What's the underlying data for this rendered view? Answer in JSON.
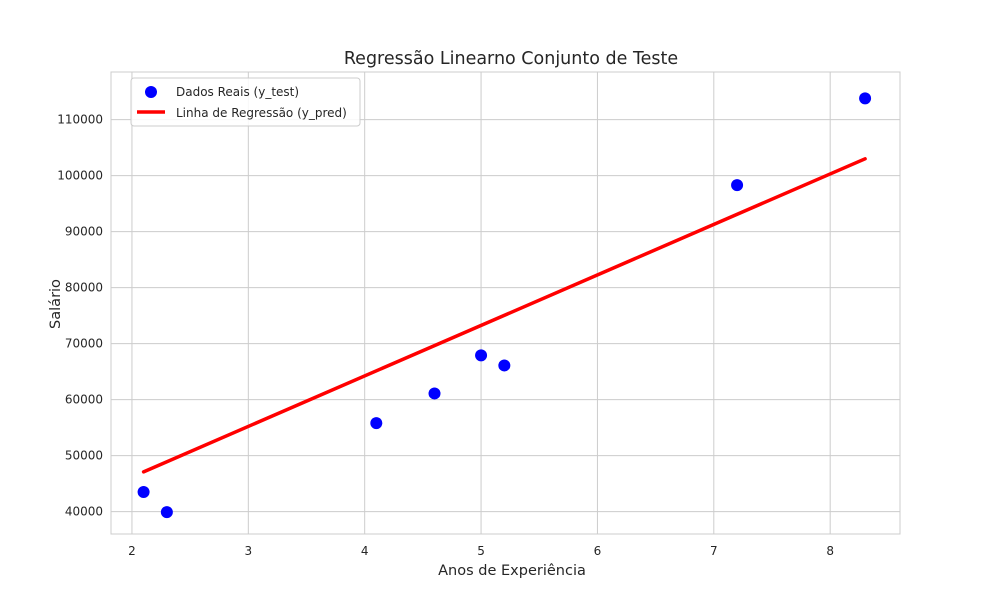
{
  "chart_data": {
    "type": "scatter",
    "title": "Regressão Linearno Conjunto de Teste",
    "xlabel": "Anos de Experiência",
    "ylabel": "Salário",
    "xlim": [
      1.82,
      8.6
    ],
    "ylim": [
      36000,
      118500
    ],
    "xticks": [
      2,
      3,
      4,
      5,
      6,
      7,
      8
    ],
    "yticks": [
      40000,
      50000,
      60000,
      70000,
      80000,
      90000,
      100000,
      110000
    ],
    "grid": true,
    "legend_position": "top-left",
    "series": [
      {
        "name": "Dados Reais (y_test)",
        "kind": "scatter",
        "color": "#0000ff",
        "x": [
          2.1,
          2.3,
          4.1,
          4.6,
          5.0,
          5.2,
          7.2,
          8.3
        ],
        "y": [
          43500,
          39900,
          55800,
          61100,
          67900,
          66100,
          98300,
          113800
        ]
      },
      {
        "name": "Linha de Regressão (y_pred)",
        "kind": "line",
        "color": "#ff0000",
        "x": [
          2.1,
          8.3
        ],
        "y": [
          47100,
          103000
        ]
      }
    ]
  }
}
